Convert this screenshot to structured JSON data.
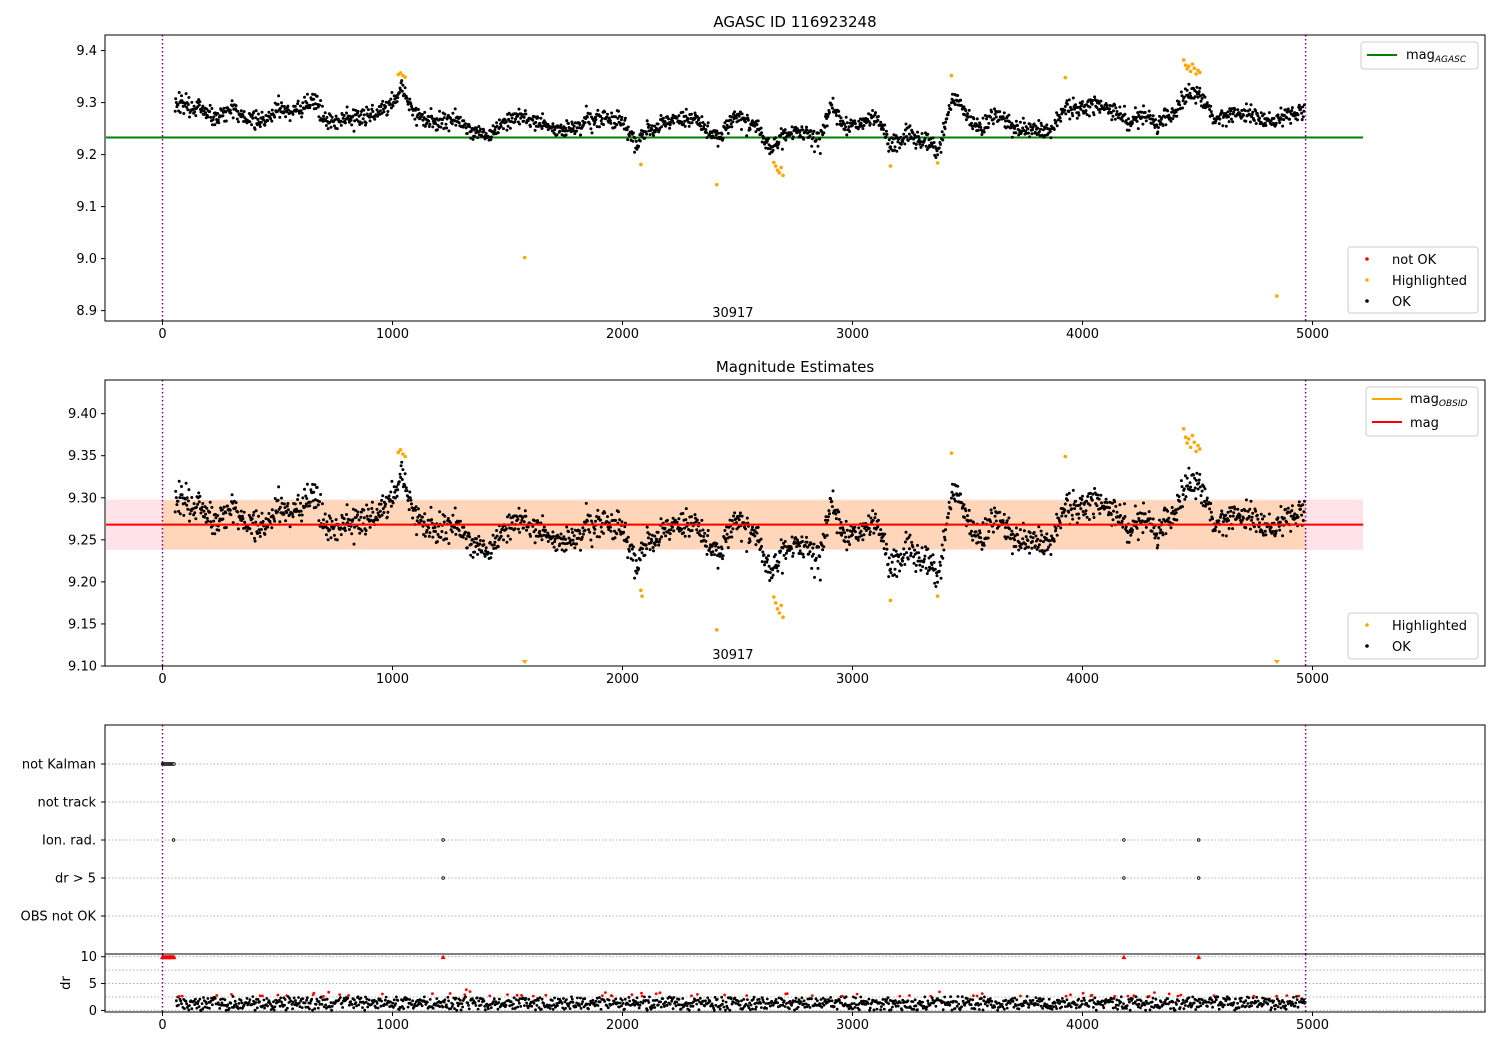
{
  "colors": {
    "ok": "#000000",
    "not_ok": "#ff0000",
    "highlighted": "#ffa500",
    "agasc_line": "#008000",
    "obsid_line": "#ffa500",
    "mag_line": "#ff0000",
    "band_fill": "#ffc0cb",
    "band_fill_obsid": "#ffa500",
    "obs_boundary": "#800080",
    "grid": "#b0b0b0"
  },
  "chart_data": [
    {
      "id": "agasc",
      "type": "scatter",
      "title": "AGASC ID 116923248",
      "xlim": [
        -250,
        5750
      ],
      "ylim": [
        8.88,
        9.43
      ],
      "xticks": [
        0,
        1000,
        2000,
        3000,
        4000,
        5000
      ],
      "yticks": [
        8.9,
        9.0,
        9.1,
        9.2,
        9.3,
        9.4
      ],
      "ytick_labels": [
        "8.9",
        "9.0",
        "9.1",
        "9.2",
        "9.3",
        "9.4"
      ],
      "reference_line": {
        "name": "mag",
        "subscript": "AGASC",
        "value": 9.233,
        "x_range": [
          -250,
          5220
        ]
      },
      "obs_boundaries": [
        0,
        4970
      ],
      "obsid_label": {
        "text": "30917",
        "x": 2480,
        "y": 8.895
      },
      "legend_lines": [
        {
          "name": "mag",
          "subscript": "AGASC"
        }
      ],
      "legend_points": [
        "not OK",
        "Highlighted",
        "OK"
      ],
      "highlighted_points": [
        {
          "x": 1025,
          "y": 9.354
        },
        {
          "x": 1035,
          "y": 9.357
        },
        {
          "x": 1045,
          "y": 9.352
        },
        {
          "x": 1055,
          "y": 9.349
        },
        {
          "x": 2080,
          "y": 9.181
        },
        {
          "x": 2410,
          "y": 9.142
        },
        {
          "x": 1575,
          "y": 9.002
        },
        {
          "x": 2658,
          "y": 9.185
        },
        {
          "x": 2666,
          "y": 9.178
        },
        {
          "x": 2674,
          "y": 9.17
        },
        {
          "x": 2682,
          "y": 9.165
        },
        {
          "x": 2690,
          "y": 9.175
        },
        {
          "x": 2698,
          "y": 9.16
        },
        {
          "x": 3165,
          "y": 9.178
        },
        {
          "x": 3370,
          "y": 9.184
        },
        {
          "x": 3430,
          "y": 9.352
        },
        {
          "x": 3925,
          "y": 9.348
        },
        {
          "x": 4440,
          "y": 9.382
        },
        {
          "x": 4448,
          "y": 9.372
        },
        {
          "x": 4455,
          "y": 9.365
        },
        {
          "x": 4462,
          "y": 9.37
        },
        {
          "x": 4470,
          "y": 9.36
        },
        {
          "x": 4478,
          "y": 9.374
        },
        {
          "x": 4486,
          "y": 9.366
        },
        {
          "x": 4494,
          "y": 9.355
        },
        {
          "x": 4502,
          "y": 9.362
        },
        {
          "x": 4510,
          "y": 9.358
        },
        {
          "x": 4845,
          "y": 8.928
        }
      ]
    },
    {
      "id": "estimates",
      "type": "scatter",
      "title": "Magnitude Estimates",
      "xlim": [
        -250,
        5750
      ],
      "ylim": [
        9.1,
        9.44
      ],
      "xticks": [
        0,
        1000,
        2000,
        3000,
        4000,
        5000
      ],
      "yticks": [
        9.1,
        9.15,
        9.2,
        9.25,
        9.3,
        9.35,
        9.4
      ],
      "ytick_labels": [
        "9.10",
        "9.15",
        "9.20",
        "9.25",
        "9.30",
        "9.35",
        "9.40"
      ],
      "mag_line": {
        "name": "mag",
        "value": 9.268,
        "band": [
          9.238,
          9.298
        ],
        "x_range": [
          -250,
          5220
        ]
      },
      "obsid_line": {
        "name": "mag",
        "subscript": "OBSID",
        "value": 9.268,
        "band": [
          9.239,
          9.297
        ],
        "x_range": [
          0,
          4970
        ]
      },
      "obs_boundaries": [
        0,
        4970
      ],
      "obsid_label": {
        "text": "30917",
        "x": 2480,
        "y": 9.113
      },
      "legend_lines": [
        {
          "name": "mag",
          "subscript": "OBSID"
        },
        {
          "name": "mag",
          "subscript": ""
        }
      ],
      "legend_points": [
        "Highlighted",
        "OK"
      ],
      "highlighted_points": [
        {
          "x": 1025,
          "y": 9.354
        },
        {
          "x": 1035,
          "y": 9.357
        },
        {
          "x": 1045,
          "y": 9.352
        },
        {
          "x": 1055,
          "y": 9.349
        },
        {
          "x": 2080,
          "y": 9.19
        },
        {
          "x": 2085,
          "y": 9.183
        },
        {
          "x": 2410,
          "y": 9.143
        },
        {
          "x": 2658,
          "y": 9.182
        },
        {
          "x": 2666,
          "y": 9.175
        },
        {
          "x": 2674,
          "y": 9.168
        },
        {
          "x": 2682,
          "y": 9.163
        },
        {
          "x": 2690,
          "y": 9.172
        },
        {
          "x": 2698,
          "y": 9.158
        },
        {
          "x": 3165,
          "y": 9.178
        },
        {
          "x": 3370,
          "y": 9.183
        },
        {
          "x": 3430,
          "y": 9.353
        },
        {
          "x": 3925,
          "y": 9.349
        },
        {
          "x": 4440,
          "y": 9.382
        },
        {
          "x": 4448,
          "y": 9.372
        },
        {
          "x": 4455,
          "y": 9.365
        },
        {
          "x": 4462,
          "y": 9.37
        },
        {
          "x": 4470,
          "y": 9.36
        },
        {
          "x": 4478,
          "y": 9.374
        },
        {
          "x": 4486,
          "y": 9.366
        },
        {
          "x": 4494,
          "y": 9.355
        },
        {
          "x": 4502,
          "y": 9.362
        },
        {
          "x": 4510,
          "y": 9.358
        }
      ],
      "offscale_markers": [
        {
          "x": 1575
        },
        {
          "x": 4845
        }
      ]
    },
    {
      "id": "flags",
      "type": "scatter",
      "xlim": [
        -250,
        5750
      ],
      "categories": [
        "not Kalman",
        "not track",
        "Ion. rad.",
        "dr > 5",
        "OBS not OK"
      ],
      "flag_points": [
        {
          "category": "not Kalman",
          "x": [
            0,
            5,
            10,
            15,
            20,
            25,
            30,
            35,
            40,
            45,
            50
          ]
        },
        {
          "category": "Ion. rad.",
          "x": [
            48,
            1220,
            4180,
            4505
          ]
        },
        {
          "category": "dr > 5",
          "x": [
            1220,
            4180,
            4505
          ]
        }
      ],
      "obs_boundaries": [
        0,
        4970
      ]
    },
    {
      "id": "dr",
      "type": "scatter",
      "ylabel": "dr",
      "xlim": [
        -250,
        5750
      ],
      "ylim": [
        -0.3,
        10.5
      ],
      "xticks": [
        0,
        1000,
        2000,
        3000,
        4000,
        5000
      ],
      "yticks": [
        0,
        5,
        10
      ],
      "ytick_labels": [
        "0",
        "5",
        "10"
      ],
      "gridlines_y": [
        0,
        2.5,
        5,
        7.5,
        10
      ],
      "clip_markers": [
        {
          "x": 0
        },
        {
          "x": 5
        },
        {
          "x": 10
        },
        {
          "x": 15
        },
        {
          "x": 20
        },
        {
          "x": 25
        },
        {
          "x": 30
        },
        {
          "x": 35
        },
        {
          "x": 40
        },
        {
          "x": 45
        },
        {
          "x": 50
        },
        {
          "x": 1220
        },
        {
          "x": 4180
        },
        {
          "x": 4505
        }
      ],
      "obs_boundaries": [
        0,
        4970
      ]
    }
  ]
}
